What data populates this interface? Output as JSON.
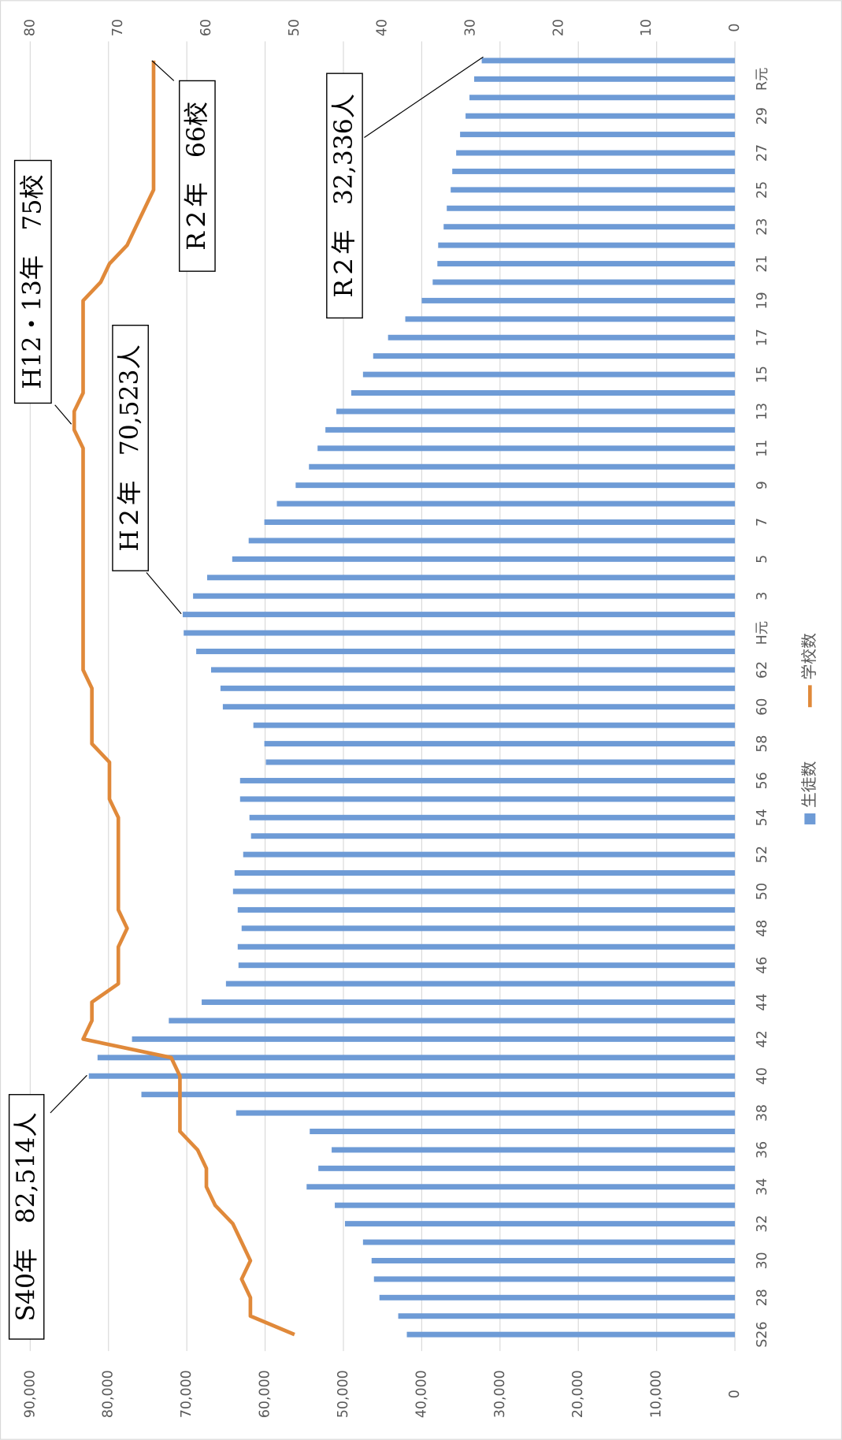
{
  "chart_data": {
    "type": "bar",
    "categories": [
      "S26",
      null,
      "28",
      null,
      "30",
      null,
      "32",
      null,
      "34",
      null,
      "36",
      null,
      "38",
      null,
      "40",
      null,
      "42",
      null,
      "44",
      null,
      "46",
      null,
      "48",
      null,
      "50",
      null,
      "52",
      null,
      "54",
      null,
      "56",
      null,
      "58",
      null,
      "60",
      null,
      "62",
      null,
      "H元",
      null,
      "3",
      null,
      "5",
      null,
      "7",
      null,
      "9",
      null,
      "11",
      null,
      "13",
      null,
      "15",
      null,
      "17",
      null,
      "19",
      null,
      "21",
      null,
      "23",
      null,
      "25",
      null,
      "27",
      null,
      "29",
      null,
      "R元",
      null
    ],
    "series": [
      {
        "name": "生徒数",
        "type": "bar",
        "color": "#6e9bd6",
        "axis": "y",
        "values": [
          41900,
          43000,
          45400,
          46100,
          46400,
          47500,
          49800,
          51100,
          54700,
          53200,
          51500,
          54300,
          63700,
          75800,
          82514,
          81400,
          77000,
          72300,
          68100,
          65000,
          63400,
          63500,
          63000,
          63500,
          64100,
          63900,
          62800,
          61800,
          62000,
          63200,
          63200,
          59900,
          60100,
          61500,
          65400,
          65700,
          66900,
          68800,
          70400,
          70523,
          69200,
          67400,
          64200,
          62100,
          60100,
          58500,
          56100,
          54400,
          53300,
          52300,
          50900,
          49000,
          47500,
          46200,
          44300,
          42100,
          40000,
          38600,
          38000,
          37900,
          37200,
          36800,
          36300,
          36100,
          35600,
          35100,
          34400,
          33900,
          33300,
          32336
        ]
      },
      {
        "name": "学校数",
        "type": "line",
        "color": "#e0893a",
        "axis": "y2",
        "values": [
          50,
          55,
          55,
          56,
          55,
          56,
          57,
          59,
          60,
          60,
          61,
          63,
          63,
          63,
          63,
          64,
          74,
          73,
          73,
          70,
          70,
          70,
          69,
          70,
          70,
          70,
          70,
          70,
          70,
          71,
          71,
          71,
          73,
          73,
          73,
          73,
          74,
          74,
          74,
          74,
          74,
          74,
          74,
          74,
          74,
          74,
          74,
          74,
          74,
          75,
          75,
          74,
          74,
          74,
          74,
          74,
          74,
          72,
          71,
          69,
          68,
          67,
          66,
          66,
          66,
          66,
          66,
          66,
          66,
          66
        ]
      }
    ],
    "ylim": [
      0,
      90000
    ],
    "yticks": [
      0,
      {
        "value": 10000,
        "label": "10,000"
      },
      {
        "value": 20000,
        "label": "20,000"
      },
      {
        "value": 30000,
        "label": "30,000"
      },
      {
        "value": 40000,
        "label": "40,000"
      },
      {
        "value": 50000,
        "label": "50,000"
      },
      {
        "value": 60000,
        "label": "60,000"
      },
      {
        "value": 70000,
        "label": "70,000"
      },
      {
        "value": 80000,
        "label": "80,000"
      },
      {
        "value": 90000,
        "label": "90,000"
      }
    ],
    "y2lim": [
      0,
      80
    ],
    "y2ticks": [
      0,
      10,
      20,
      30,
      40,
      50,
      60,
      70,
      80
    ],
    "grid": true,
    "legend": "bottom",
    "annotations": [
      "S40年　82,514人",
      "H２年　70,523人",
      "H12・13年　75校",
      "R２年　66校",
      "R２年　32,336人"
    ]
  }
}
